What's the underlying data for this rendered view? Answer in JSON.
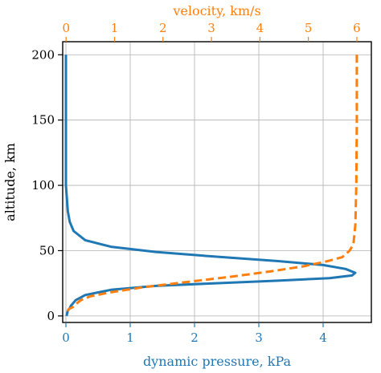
{
  "chart_data": {
    "type": "line",
    "title": "",
    "xlabel_bottom": "dynamic pressure, kPa",
    "xlabel_top": "velocity, km/s",
    "ylabel": "altitude, km",
    "xlim_bottom": [
      -0.05,
      4.75
    ],
    "xlim_top": [
      -0.07,
      6.3
    ],
    "ylim": [
      -5,
      210
    ],
    "xticks_bottom": [
      0,
      1,
      2,
      3,
      4
    ],
    "xticks_top": [
      0,
      1,
      2,
      3,
      4,
      5,
      6
    ],
    "yticks": [
      0,
      50,
      100,
      150,
      200
    ],
    "grid": true,
    "colors": {
      "pressure": "#1f77b4",
      "velocity": "#ff7f0e",
      "axis": "#000000",
      "grid": "#b0b0b0"
    },
    "series": [
      {
        "axis": "bottom",
        "style": "solid",
        "points": [
          {
            "x": 0.0,
            "y": 200
          },
          {
            "x": 0.0,
            "y": 150
          },
          {
            "x": 0.0,
            "y": 100
          },
          {
            "x": 0.03,
            "y": 80
          },
          {
            "x": 0.06,
            "y": 72
          },
          {
            "x": 0.12,
            "y": 65
          },
          {
            "x": 0.3,
            "y": 58
          },
          {
            "x": 0.7,
            "y": 53
          },
          {
            "x": 1.4,
            "y": 49
          },
          {
            "x": 2.3,
            "y": 45.5
          },
          {
            "x": 3.3,
            "y": 42
          },
          {
            "x": 4.0,
            "y": 39
          },
          {
            "x": 4.35,
            "y": 36
          },
          {
            "x": 4.5,
            "y": 33
          },
          {
            "x": 4.45,
            "y": 31
          },
          {
            "x": 4.1,
            "y": 29
          },
          {
            "x": 3.3,
            "y": 27
          },
          {
            "x": 2.3,
            "y": 25
          },
          {
            "x": 1.4,
            "y": 23
          },
          {
            "x": 0.7,
            "y": 20
          },
          {
            "x": 0.3,
            "y": 16
          },
          {
            "x": 0.15,
            "y": 12
          },
          {
            "x": 0.1,
            "y": 9
          },
          {
            "x": 0.08,
            "y": 8
          },
          {
            "x": 0.06,
            "y": 6
          },
          {
            "x": 0.03,
            "y": 4
          },
          {
            "x": 0.02,
            "y": 2
          },
          {
            "x": 0.01,
            "y": 0
          }
        ]
      },
      {
        "axis": "top",
        "style": "dashed",
        "points": [
          {
            "x": 6.0,
            "y": 200
          },
          {
            "x": 6.0,
            "y": 150
          },
          {
            "x": 5.99,
            "y": 100
          },
          {
            "x": 5.97,
            "y": 70
          },
          {
            "x": 5.93,
            "y": 55
          },
          {
            "x": 5.85,
            "y": 50
          },
          {
            "x": 5.7,
            "y": 45
          },
          {
            "x": 5.4,
            "y": 42
          },
          {
            "x": 4.9,
            "y": 38
          },
          {
            "x": 4.2,
            "y": 34
          },
          {
            "x": 3.4,
            "y": 30
          },
          {
            "x": 2.5,
            "y": 26
          },
          {
            "x": 1.6,
            "y": 22
          },
          {
            "x": 0.9,
            "y": 18
          },
          {
            "x": 0.5,
            "y": 15
          },
          {
            "x": 0.3,
            "y": 12
          },
          {
            "x": 0.2,
            "y": 9
          },
          {
            "x": 0.15,
            "y": 7
          },
          {
            "x": 0.1,
            "y": 6
          },
          {
            "x": 0.05,
            "y": 5
          },
          {
            "x": 0.02,
            "y": 3
          },
          {
            "x": 0.01,
            "y": 1
          }
        ]
      }
    ]
  }
}
